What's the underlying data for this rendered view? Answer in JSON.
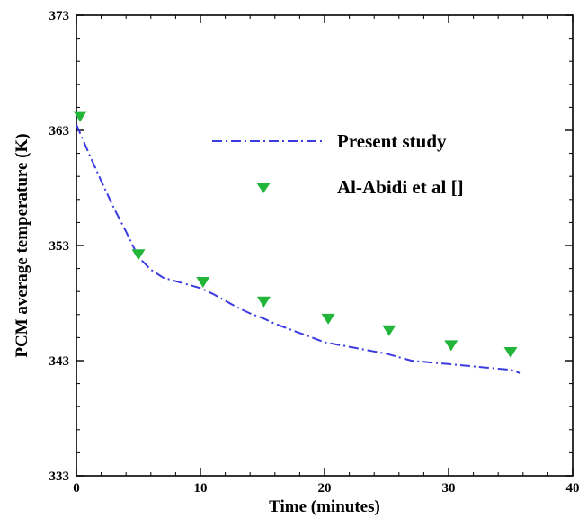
{
  "chart_data": {
    "type": "line",
    "xlabel": "Time (minutes)",
    "ylabel": "PCM average temperature (K)",
    "xlim": [
      0,
      40
    ],
    "ylim": [
      333,
      373
    ],
    "x_ticks": [
      "0",
      "10",
      "20",
      "30",
      "40"
    ],
    "y_ticks": [
      "333",
      "343",
      "353",
      "363",
      "373"
    ],
    "x_minor_step": 2,
    "y_minor_step": 2,
    "grid": false,
    "legend_position": "upper-right",
    "series": [
      {
        "name": "Present study",
        "style": "dash-dot line",
        "color": "#3b3be0",
        "x": [
          0,
          1,
          2,
          3,
          4,
          5,
          6,
          7,
          8,
          9,
          10,
          11,
          12,
          13,
          14,
          15,
          16,
          17,
          18,
          19,
          20,
          21,
          22,
          23,
          24,
          25,
          26,
          27,
          28,
          29,
          30,
          31,
          32,
          33,
          34,
          35,
          35.8
        ],
        "y": [
          363.5,
          361.0,
          358.6,
          356.3,
          354.2,
          352.0,
          350.9,
          350.2,
          349.9,
          349.6,
          349.3,
          348.8,
          348.2,
          347.6,
          347.1,
          346.7,
          346.2,
          345.8,
          345.4,
          345.0,
          344.6,
          344.4,
          344.2,
          344.0,
          343.8,
          343.6,
          343.3,
          343.0,
          342.9,
          342.8,
          342.7,
          342.6,
          342.5,
          342.4,
          342.3,
          342.2,
          341.9
        ]
      },
      {
        "name": "Al-Abidi et al []",
        "style": "marker",
        "marker": "down-triangle",
        "color": "#22b53a",
        "x": [
          0.3,
          5,
          10.2,
          15.1,
          20.3,
          25.2,
          30.2,
          35
        ],
        "y": [
          364.2,
          352.2,
          349.8,
          348.1,
          346.6,
          345.6,
          344.3,
          343.7
        ]
      }
    ]
  }
}
